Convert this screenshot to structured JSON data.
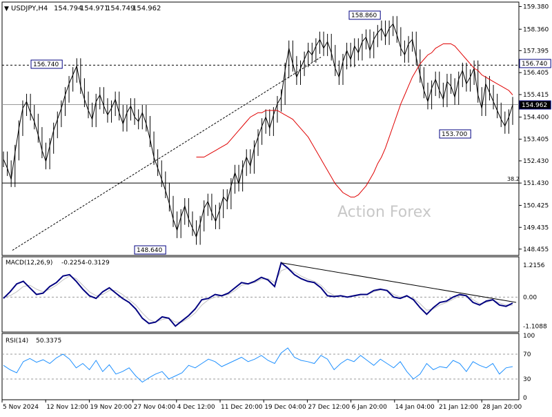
{
  "header": {
    "symbol": "USDJPY,H4",
    "ohlc": [
      "154.794",
      "154.971",
      "154.749",
      "154.962"
    ]
  },
  "watermark": "Action Forex",
  "colors": {
    "price": "#000000",
    "ma": "#e00000",
    "macd": "#000080",
    "signal": "#c0c0c0",
    "rsi": "#1e90ff",
    "label_border": "#000080"
  },
  "chart_data": [
    {
      "type": "line",
      "name": "price",
      "y_ticks": [
        "159.380",
        "158.360",
        "157.395",
        "156.405",
        "155.415",
        "154.400",
        "153.405",
        "152.430",
        "151.430",
        "150.425",
        "149.435",
        "148.455"
      ],
      "y_ticks_values": [
        159.38,
        158.36,
        157.395,
        156.405,
        155.415,
        154.4,
        153.405,
        152.43,
        151.43,
        150.425,
        149.435,
        148.455
      ],
      "ylim": [
        148.2,
        159.55
      ],
      "x_ticks": [
        "5 Nov 2024",
        "12 Nov 12:00",
        "19 Nov 20:00",
        "27 Nov 04:00",
        "4 Dec 12:00",
        "11 Dec 20:00",
        "19 Dec 04:00",
        "27 Dec 12:00",
        "6 Jan 20:00",
        "14 Jan 04:00",
        "21 Jan 12:00",
        "28 Jan 20:00"
      ],
      "close": [
        152.5,
        152.1,
        151.6,
        152.8,
        153.9,
        154.8,
        155.1,
        154.6,
        154.2,
        153.6,
        152.9,
        152.4,
        153.1,
        153.8,
        154.3,
        154.8,
        155.4,
        155.9,
        156.3,
        156.7,
        155.8,
        155.2,
        154.7,
        154.3,
        155.1,
        155.4,
        154.9,
        154.5,
        154.8,
        155.2,
        154.6,
        154.1,
        154.6,
        154.9,
        154.4,
        154.2,
        154.6,
        154.1,
        153.4,
        152.6,
        152.1,
        151.6,
        151.1,
        150.5,
        149.8,
        149.3,
        149.9,
        150.4,
        149.8,
        149.4,
        149.0,
        149.6,
        150.3,
        150.6,
        150.1,
        149.7,
        150.2,
        150.8,
        150.6,
        151.3,
        151.9,
        151.4,
        152.1,
        152.6,
        152.2,
        153.0,
        153.5,
        154.0,
        154.4,
        153.9,
        154.5,
        155.0,
        155.3,
        156.5,
        157.5,
        156.8,
        156.2,
        156.6,
        157.0,
        157.4,
        157.2,
        157.6,
        157.9,
        157.5,
        157.8,
        157.3,
        156.6,
        156.2,
        156.9,
        157.4,
        157.0,
        157.6,
        157.3,
        157.8,
        158.0,
        157.4,
        157.9,
        158.2,
        158.4,
        158.0,
        158.4,
        158.6,
        158.1,
        157.5,
        157.2,
        157.7,
        157.9,
        157.1,
        156.3,
        155.6,
        155.1,
        155.7,
        156.1,
        155.6,
        155.2,
        156.0,
        155.8,
        155.3,
        156.1,
        156.5,
        155.9,
        156.2,
        156.6,
        155.4,
        154.8,
        155.9,
        155.5,
        155.1,
        154.7,
        154.3,
        154.0,
        154.4,
        154.96
      ],
      "ma": [
        152.6,
        152.6,
        152.6,
        152.7,
        152.8,
        152.9,
        153.0,
        153.1,
        153.2,
        153.4,
        153.6,
        153.8,
        154.0,
        154.2,
        154.4,
        154.5,
        154.6,
        154.6,
        154.7,
        154.7,
        154.7,
        154.7,
        154.6,
        154.5,
        154.4,
        154.3,
        154.1,
        153.9,
        153.7,
        153.5,
        153.2,
        152.9,
        152.6,
        152.3,
        152.0,
        151.7,
        151.4,
        151.2,
        151.0,
        150.9,
        150.8,
        150.8,
        150.9,
        151.1,
        151.3,
        151.6,
        151.9,
        152.3,
        152.6,
        153.0,
        153.5,
        154.0,
        154.5,
        155.0,
        155.4,
        155.8,
        156.2,
        156.5,
        156.8,
        157.0,
        157.2,
        157.3,
        157.5,
        157.6,
        157.7,
        157.7,
        157.7,
        157.6,
        157.4,
        157.2,
        157.0,
        156.8,
        156.6,
        156.5,
        156.3,
        156.2,
        156.1,
        156.0,
        155.9,
        155.8,
        155.7,
        155.6,
        155.4
      ],
      "ma_start_index": 52,
      "annotations": [
        {
          "label": "158.860",
          "value": 158.86
        },
        {
          "label": "156.740",
          "value": 156.74
        },
        {
          "label": "153.700",
          "value": 153.7
        },
        {
          "label": "148.640",
          "value": 148.64
        },
        {
          "label": "156.740",
          "value": 156.74
        },
        {
          "label": "154.962",
          "value": 154.962
        }
      ],
      "fib_label": "38.2",
      "fib_level": 151.43
    },
    {
      "type": "line",
      "name": "MACD(12,26,9)",
      "header_values": [
        "-0.2254",
        "-0.3129"
      ],
      "y_ticks": [
        "1.2156",
        "0.00",
        "-1.1088"
      ],
      "y_ticks_values": [
        1.2156,
        0,
        -1.1088
      ],
      "ylim": [
        -1.3,
        1.5
      ],
      "macd": [
        -0.05,
        0.2,
        0.5,
        0.6,
        0.35,
        0.1,
        0.15,
        0.4,
        0.55,
        0.8,
        0.85,
        0.6,
        0.3,
        0.05,
        -0.05,
        0.2,
        0.35,
        0.15,
        -0.05,
        -0.2,
        -0.45,
        -0.8,
        -1.0,
        -0.95,
        -0.75,
        -0.8,
        -1.1,
        -0.9,
        -0.7,
        -0.45,
        -0.1,
        -0.05,
        0.1,
        0.05,
        0.15,
        0.35,
        0.55,
        0.5,
        0.6,
        0.75,
        0.65,
        0.4,
        1.3,
        1.1,
        0.85,
        0.7,
        0.6,
        0.55,
        0.35,
        0.05,
        0.02,
        0.05,
        0.0,
        0.05,
        0.1,
        0.1,
        0.25,
        0.3,
        0.25,
        0.0,
        -0.05,
        0.05,
        -0.1,
        -0.4,
        -0.65,
        -0.4,
        -0.2,
        -0.15,
        0.0,
        0.1,
        0.05,
        -0.2,
        -0.3,
        -0.15,
        -0.1,
        -0.3,
        -0.35,
        -0.23
      ],
      "signal": [
        0.0,
        0.05,
        0.2,
        0.4,
        0.45,
        0.3,
        0.2,
        0.3,
        0.45,
        0.65,
        0.8,
        0.7,
        0.45,
        0.2,
        0.05,
        0.1,
        0.25,
        0.25,
        0.1,
        -0.1,
        -0.3,
        -0.6,
        -0.85,
        -0.95,
        -0.85,
        -0.8,
        -0.95,
        -0.95,
        -0.8,
        -0.6,
        -0.3,
        -0.1,
        0.0,
        0.05,
        0.1,
        0.25,
        0.45,
        0.5,
        0.55,
        0.68,
        0.7,
        0.55,
        1.0,
        1.1,
        0.95,
        0.8,
        0.68,
        0.6,
        0.45,
        0.2,
        0.06,
        0.04,
        0.02,
        0.03,
        0.08,
        0.1,
        0.2,
        0.27,
        0.27,
        0.1,
        0.0,
        0.02,
        -0.05,
        -0.25,
        -0.5,
        -0.45,
        -0.3,
        -0.2,
        -0.08,
        0.05,
        0.06,
        -0.1,
        -0.25,
        -0.2,
        -0.12,
        -0.22,
        -0.3,
        -0.31
      ]
    },
    {
      "type": "line",
      "name": "RSI(14)",
      "header_value": "50.3375",
      "y_ticks": [
        "100",
        "70",
        "30",
        "0"
      ],
      "y_ticks_values": [
        100,
        70,
        30,
        0
      ],
      "ylim": [
        0,
        100
      ],
      "rsi": [
        52,
        45,
        40,
        58,
        63,
        57,
        61,
        55,
        64,
        70,
        62,
        48,
        55,
        45,
        60,
        42,
        53,
        38,
        42,
        48,
        35,
        25,
        32,
        38,
        42,
        30,
        35,
        40,
        52,
        48,
        55,
        62,
        58,
        50,
        55,
        60,
        65,
        58,
        62,
        68,
        60,
        55,
        72,
        80,
        65,
        60,
        58,
        55,
        68,
        62,
        45,
        55,
        62,
        58,
        68,
        60,
        52,
        62,
        55,
        48,
        58,
        42,
        30,
        38,
        55,
        45,
        50,
        48,
        60,
        55,
        42,
        58,
        52,
        48,
        55,
        38,
        48,
        50
      ]
    }
  ]
}
